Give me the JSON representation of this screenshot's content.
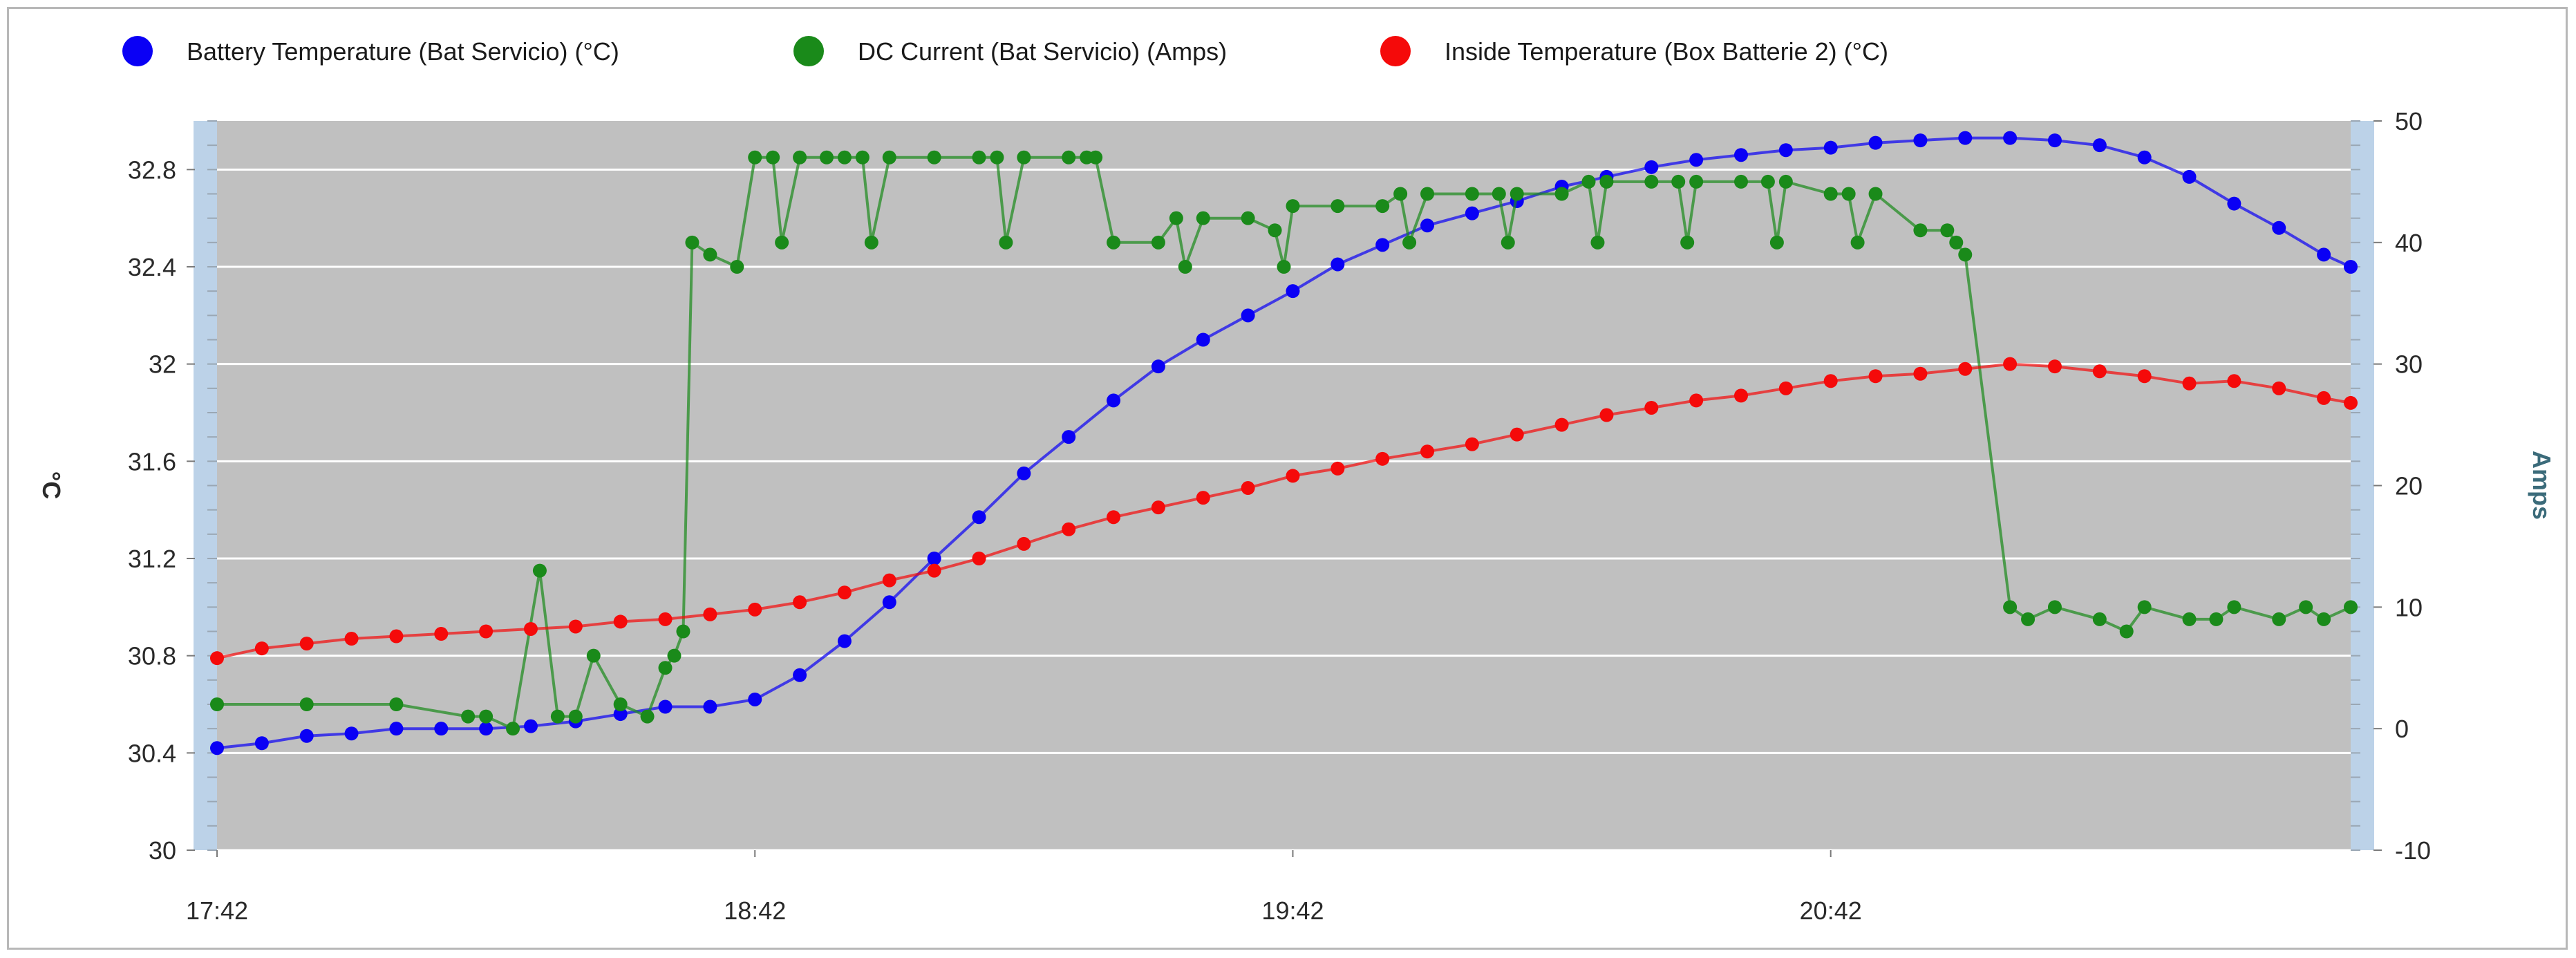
{
  "chart_data": {
    "type": "line",
    "title": "",
    "y_left": {
      "label": "°C",
      "ylim": [
        30,
        33
      ],
      "ticks": [
        "30",
        "30.4",
        "30.8",
        "31.2",
        "31.6",
        "32",
        "32.4",
        "32.8"
      ],
      "tick_values": [
        30,
        30.4,
        30.8,
        31.2,
        31.6,
        32,
        32.4,
        32.8
      ]
    },
    "y_right": {
      "label": "Amps",
      "ylim": [
        -10,
        50
      ],
      "ticks": [
        "-10",
        "0",
        "10",
        "20",
        "30",
        "40",
        "50"
      ],
      "tick_values": [
        -10,
        0,
        10,
        20,
        30,
        40,
        50
      ]
    },
    "x": {
      "xlim_minutes": [
        0,
        238
      ],
      "ticks": [
        "17:42",
        "18:42",
        "19:42",
        "20:42"
      ],
      "tick_minutes": [
        0,
        60,
        120,
        180
      ]
    },
    "colors": {
      "battery": "#0a00f5",
      "current": "#1a8a1a",
      "inside": "#f50a0a",
      "plot_bg": "#c0c0c0",
      "axis_band": "#bcd2e8",
      "grid": "#ffffff"
    },
    "series": [
      {
        "name": "Battery Temperature (Bat Servicio) (°C)",
        "axis": "left",
        "color_key": "battery",
        "x": [
          0,
          5,
          10,
          15,
          20,
          25,
          30,
          35,
          40,
          45,
          50,
          55,
          60,
          65,
          70,
          75,
          80,
          85,
          90,
          95,
          100,
          105,
          110,
          115,
          120,
          125,
          130,
          135,
          140,
          145,
          150,
          155,
          160,
          165,
          170,
          175,
          180,
          185,
          190,
          195,
          200,
          205,
          210,
          215,
          220,
          225,
          230,
          235,
          238
        ],
        "y": [
          30.42,
          30.44,
          30.47,
          30.48,
          30.5,
          30.5,
          30.5,
          30.51,
          30.53,
          30.56,
          30.59,
          30.59,
          30.62,
          30.72,
          30.86,
          31.02,
          31.2,
          31.37,
          31.55,
          31.7,
          31.85,
          31.99,
          32.1,
          32.2,
          32.3,
          32.41,
          32.49,
          32.57,
          32.62,
          32.67,
          32.73,
          32.77,
          32.81,
          32.84,
          32.86,
          32.88,
          32.89,
          32.91,
          32.92,
          32.93,
          32.93,
          32.92,
          32.9,
          32.85,
          32.77,
          32.66,
          32.56,
          32.45,
          32.4
        ]
      },
      {
        "name": "DC Current (Bat Servicio) (Amps)",
        "axis": "right",
        "color_key": "current",
        "x": [
          0,
          10,
          20,
          28,
          30,
          33,
          36,
          38,
          40,
          42,
          45,
          48,
          50,
          51,
          52,
          53,
          55,
          58,
          60,
          62,
          63,
          65,
          68,
          70,
          72,
          73,
          75,
          80,
          85,
          87,
          88,
          90,
          95,
          97,
          98,
          100,
          105,
          107,
          108,
          110,
          115,
          118,
          119,
          120,
          125,
          130,
          132,
          133,
          135,
          140,
          143,
          144,
          145,
          150,
          153,
          154,
          155,
          160,
          163,
          164,
          165,
          170,
          173,
          174,
          175,
          180,
          182,
          183,
          185,
          190,
          193,
          194,
          195,
          200,
          202,
          205,
          210,
          213,
          215,
          220,
          223,
          225,
          230,
          233,
          235,
          238
        ],
        "y": [
          2,
          2,
          2,
          1,
          1,
          0,
          13,
          1,
          1,
          6,
          2,
          1,
          5,
          6,
          8,
          40,
          39,
          38,
          47,
          47,
          40,
          47,
          47,
          47,
          47,
          40,
          47,
          47,
          47,
          47,
          40,
          47,
          47,
          47,
          47,
          40,
          40,
          42,
          38,
          42,
          42,
          41,
          38,
          43,
          43,
          43,
          44,
          40,
          44,
          44,
          44,
          40,
          44,
          44,
          45,
          40,
          45,
          45,
          45,
          40,
          45,
          45,
          45,
          40,
          45,
          44,
          44,
          40,
          44,
          41,
          41,
          40,
          39,
          10,
          9,
          10,
          9,
          8,
          10,
          9,
          9,
          10,
          9,
          10,
          9,
          10
        ]
      },
      {
        "name": "Inside Temperature (Box Batterie 2) (°C)",
        "axis": "left",
        "color_key": "inside",
        "x": [
          0,
          5,
          10,
          15,
          20,
          25,
          30,
          35,
          40,
          45,
          50,
          55,
          60,
          65,
          70,
          75,
          80,
          85,
          90,
          95,
          100,
          105,
          110,
          115,
          120,
          125,
          130,
          135,
          140,
          145,
          150,
          155,
          160,
          165,
          170,
          175,
          180,
          185,
          190,
          195,
          200,
          205,
          210,
          215,
          220,
          225,
          230,
          235,
          238
        ],
        "y": [
          30.79,
          30.83,
          30.85,
          30.87,
          30.88,
          30.89,
          30.9,
          30.91,
          30.92,
          30.94,
          30.95,
          30.97,
          30.99,
          31.02,
          31.06,
          31.11,
          31.15,
          31.2,
          31.26,
          31.32,
          31.37,
          31.41,
          31.45,
          31.49,
          31.54,
          31.57,
          31.61,
          31.64,
          31.67,
          31.71,
          31.75,
          31.79,
          31.82,
          31.85,
          31.87,
          31.9,
          31.93,
          31.95,
          31.96,
          31.98,
          32.0,
          31.99,
          31.97,
          31.95,
          31.92,
          31.93,
          31.9,
          31.86,
          31.84
        ]
      }
    ]
  }
}
